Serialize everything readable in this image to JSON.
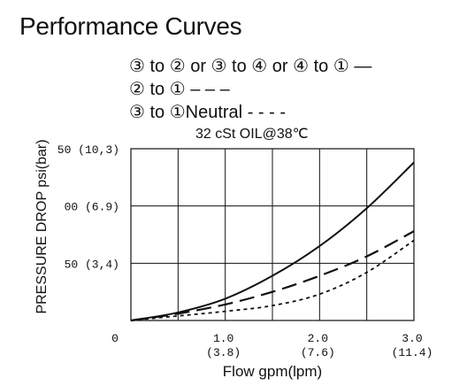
{
  "title": "Performance Curves",
  "legend": [
    {
      "text": "③ to ② or ③ to ④ or ④ to ①",
      "style": "solid",
      "mark": "—"
    },
    {
      "text": "② to ①",
      "style": "dashed",
      "mark": "– – –"
    },
    {
      "text": "③ to ①Neutral",
      "style": "dotted",
      "mark": "- - - -"
    }
  ],
  "condition": "32 cSt OIL@38℃",
  "chart_data": {
    "type": "line",
    "ylabel": "PRESSURE DROP psi(bar)",
    "xlabel": "Flow gpm(lpm)",
    "xlim": [
      0,
      3.0
    ],
    "ylim": [
      0,
      150
    ],
    "grid": true,
    "x_ticks": [
      {
        "value": 0,
        "label": "0",
        "sub": ""
      },
      {
        "value": 1.0,
        "label": "1.0",
        "sub": "(3.8)"
      },
      {
        "value": 2.0,
        "label": "2.0",
        "sub": "(7.6)"
      },
      {
        "value": 3.0,
        "label": "3.0",
        "sub": "(11.4)"
      }
    ],
    "y_ticks": [
      {
        "value": 50,
        "label": "50 (3,4)"
      },
      {
        "value": 100,
        "label": "00 (6.9)"
      },
      {
        "value": 150,
        "label": "50 (10,3)"
      }
    ],
    "series": [
      {
        "style": "solid",
        "color": "#111111",
        "x": [
          0,
          0.5,
          1.0,
          1.5,
          2.0,
          2.5,
          3.0
        ],
        "y": [
          0,
          7,
          19,
          39,
          65,
          98,
          138
        ]
      },
      {
        "style": "dashed",
        "color": "#111111",
        "x": [
          0,
          0.5,
          1.0,
          1.5,
          2.0,
          2.5,
          3.0
        ],
        "y": [
          0,
          6,
          14,
          25,
          39,
          56,
          78
        ]
      },
      {
        "style": "dotted",
        "color": "#111111",
        "x": [
          0,
          0.5,
          1.0,
          1.5,
          2.0,
          2.5,
          3.0
        ],
        "y": [
          0,
          4,
          8,
          13,
          23,
          42,
          70
        ]
      }
    ]
  }
}
